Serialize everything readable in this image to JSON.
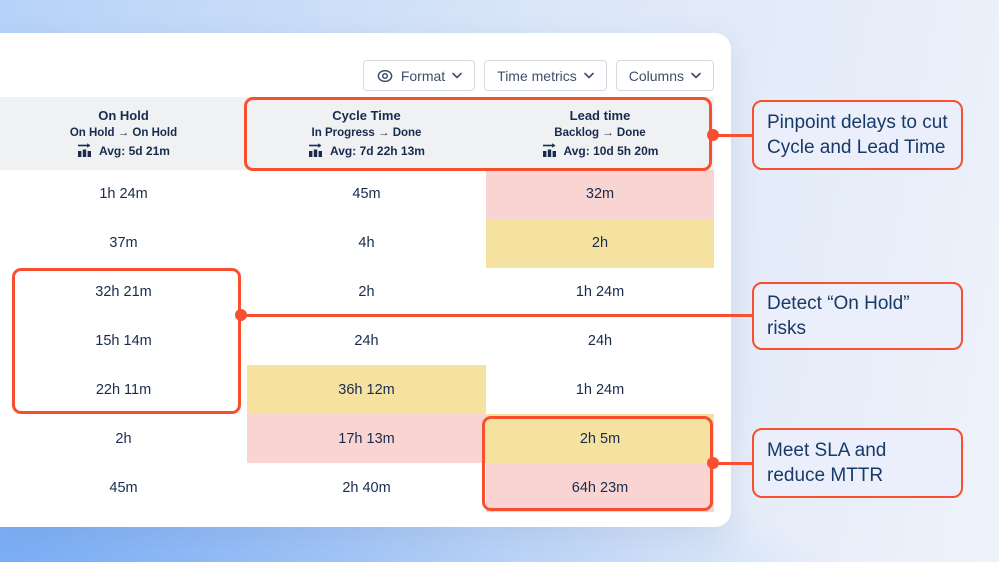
{
  "toolbar": {
    "buttons": [
      {
        "label": "Format",
        "icon": "eye-icon",
        "has_chevron": true
      },
      {
        "label": "Time metrics",
        "has_chevron": true
      },
      {
        "label": "Columns",
        "has_chevron": true
      }
    ]
  },
  "table": {
    "columns": [
      {
        "title": "On Hold",
        "transition": "On Hold → On Hold",
        "avg": "Avg: 5d 21m"
      },
      {
        "title": "Cycle Time",
        "transition": "In Progress → Done",
        "avg": "Avg: 7d 22h 13m"
      },
      {
        "title": "Lead time",
        "transition": "Backlog → Done",
        "avg": "Avg: 10d 5h 20m"
      }
    ],
    "rows": [
      {
        "cells": [
          {
            "value": "1h 24m"
          },
          {
            "value": "45m"
          },
          {
            "value": "32m",
            "bg": "critical"
          }
        ]
      },
      {
        "cells": [
          {
            "value": "37m"
          },
          {
            "value": "4h"
          },
          {
            "value": "2h",
            "bg": "warning"
          }
        ]
      },
      {
        "cells": [
          {
            "value": "32h 21m"
          },
          {
            "value": "2h"
          },
          {
            "value": "1h 24m"
          }
        ]
      },
      {
        "cells": [
          {
            "value": "15h 14m"
          },
          {
            "value": "24h"
          },
          {
            "value": "24h"
          }
        ]
      },
      {
        "cells": [
          {
            "value": "22h 11m"
          },
          {
            "value": "36h 12m",
            "bg": "warning"
          },
          {
            "value": "1h 24m"
          }
        ]
      },
      {
        "cells": [
          {
            "value": "2h"
          },
          {
            "value": "17h 13m",
            "bg": "critical"
          },
          {
            "value": "2h 5m",
            "bg": "warning"
          }
        ]
      },
      {
        "cells": [
          {
            "value": "45m"
          },
          {
            "value": "2h 40m"
          },
          {
            "value": "64h 23m",
            "bg": "critical"
          }
        ]
      }
    ]
  },
  "annotations": [
    {
      "text": "Pinpoint delays to cut Cycle and Lead Time"
    },
    {
      "text": "Detect “On Hold” risks"
    },
    {
      "text": "Meet SLA and reduce MTTR"
    }
  ],
  "colors": {
    "accent": "#F8502E",
    "cell_warning": "#F5E2A0",
    "cell_critical": "#FAD4D3",
    "text_navy": "#172B4D",
    "header_band": "#F0F1F3"
  }
}
